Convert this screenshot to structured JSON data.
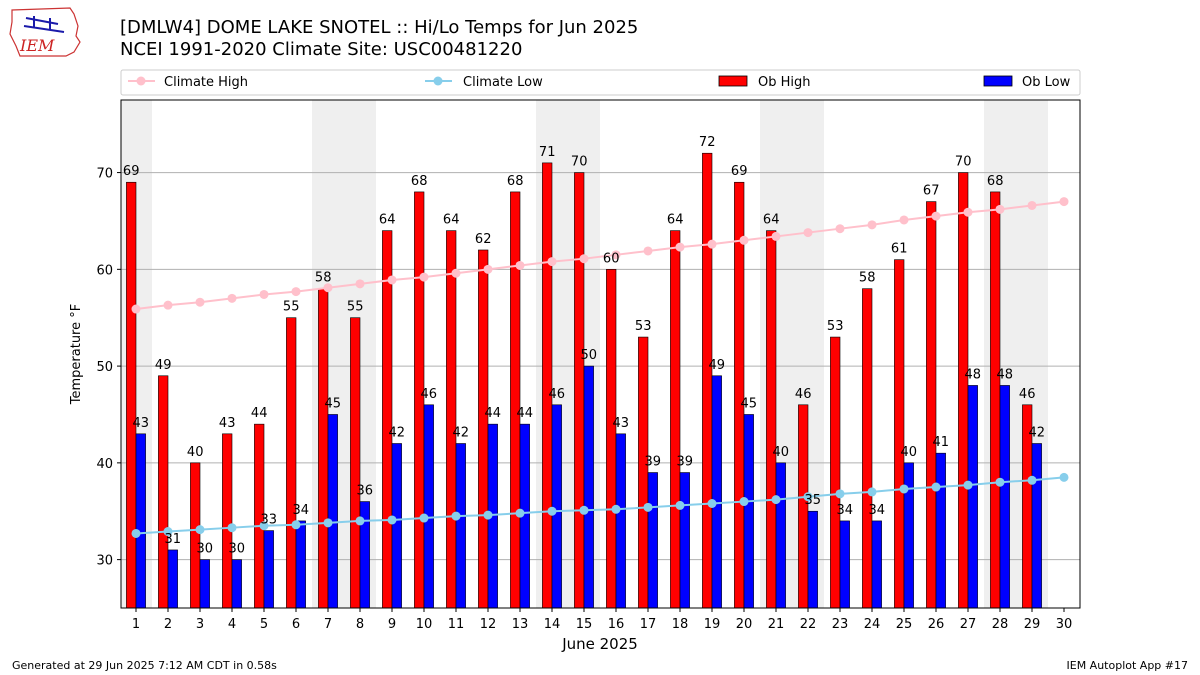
{
  "header": {
    "logo_text": "IEM",
    "title_line1": "[DMLW4] DOME LAKE SNOTEL :: Hi/Lo Temps for Jun 2025",
    "title_line2": "NCEI 1991-2020 Climate Site: USC00481220"
  },
  "footer": {
    "generated": "Generated at 29 Jun 2025 7:12 AM CDT in 0.58s",
    "app": "IEM Autoplot App #17"
  },
  "colors": {
    "ob_high": "#ff0000",
    "ob_low": "#0000ff",
    "climate_high": "#ffc0cb",
    "climate_low": "#87ceeb",
    "weekend_band": "#efefef"
  },
  "chart_data": {
    "type": "bar",
    "title": "[DMLW4] DOME LAKE SNOTEL :: Hi/Lo Temps for Jun 2025",
    "subtitle": "NCEI 1991-2020 Climate Site: USC00481220",
    "xlabel": "June 2025",
    "ylabel": "Temperature °F",
    "ylim": [
      25,
      77.5
    ],
    "yticks": [
      30,
      40,
      50,
      60,
      70
    ],
    "x": [
      1,
      2,
      3,
      4,
      5,
      6,
      7,
      8,
      9,
      10,
      11,
      12,
      13,
      14,
      15,
      16,
      17,
      18,
      19,
      20,
      21,
      22,
      23,
      24,
      25,
      26,
      27,
      28,
      29,
      30
    ],
    "grid": "horizontal",
    "legend_position": "top",
    "weekend_days": [
      1,
      7,
      8,
      14,
      15,
      21,
      22,
      28,
      29
    ],
    "series": [
      {
        "name": "Climate High",
        "kind": "line",
        "values": [
          55.9,
          56.3,
          56.6,
          57.0,
          57.4,
          57.7,
          58.1,
          58.5,
          58.9,
          59.2,
          59.6,
          60.0,
          60.4,
          60.8,
          61.1,
          61.5,
          61.9,
          62.3,
          62.6,
          63.0,
          63.4,
          63.8,
          64.2,
          64.6,
          65.1,
          65.5,
          65.9,
          66.2,
          66.6,
          67.0
        ]
      },
      {
        "name": "Climate Low",
        "kind": "line",
        "values": [
          32.7,
          32.9,
          33.1,
          33.3,
          33.5,
          33.6,
          33.8,
          34.0,
          34.1,
          34.3,
          34.5,
          34.6,
          34.8,
          35.0,
          35.1,
          35.2,
          35.4,
          35.6,
          35.8,
          36.0,
          36.2,
          36.5,
          36.8,
          37.0,
          37.3,
          37.5,
          37.7,
          38.0,
          38.2,
          38.5
        ]
      },
      {
        "name": "Ob High",
        "kind": "bar",
        "values": [
          69,
          49,
          40,
          43,
          44,
          55,
          58,
          55,
          64,
          68,
          64,
          62,
          68,
          71,
          70,
          60,
          53,
          64,
          72,
          69,
          64,
          46,
          53,
          58,
          61,
          67,
          70,
          68,
          46,
          null
        ],
        "labels": [
          "69",
          "49",
          "40",
          "43",
          "44",
          "55",
          "58",
          "55",
          "64",
          "68",
          "64",
          "62",
          "68",
          "71",
          "70",
          "60",
          "53",
          "64",
          "72",
          "69",
          "64",
          "46",
          "53",
          "58",
          "61",
          "67",
          "70",
          "68",
          "46",
          ""
        ]
      },
      {
        "name": "Ob Low",
        "kind": "bar",
        "values": [
          43,
          31,
          30,
          30,
          33,
          34,
          45,
          36,
          42,
          46,
          42,
          44,
          44,
          46,
          50,
          43,
          39,
          39,
          49,
          45,
          40,
          35,
          34,
          34,
          40,
          41,
          48,
          48,
          42,
          null
        ],
        "labels": [
          "43",
          "31",
          "30",
          "30",
          "33",
          "34",
          "45",
          "36",
          "42",
          "46",
          "42",
          "44",
          "44",
          "46",
          "50",
          "43",
          "39",
          "39",
          "49",
          "45",
          "40",
          "35",
          "34",
          "34",
          "40",
          "41",
          "48",
          "48",
          "42",
          ""
        ]
      }
    ]
  }
}
